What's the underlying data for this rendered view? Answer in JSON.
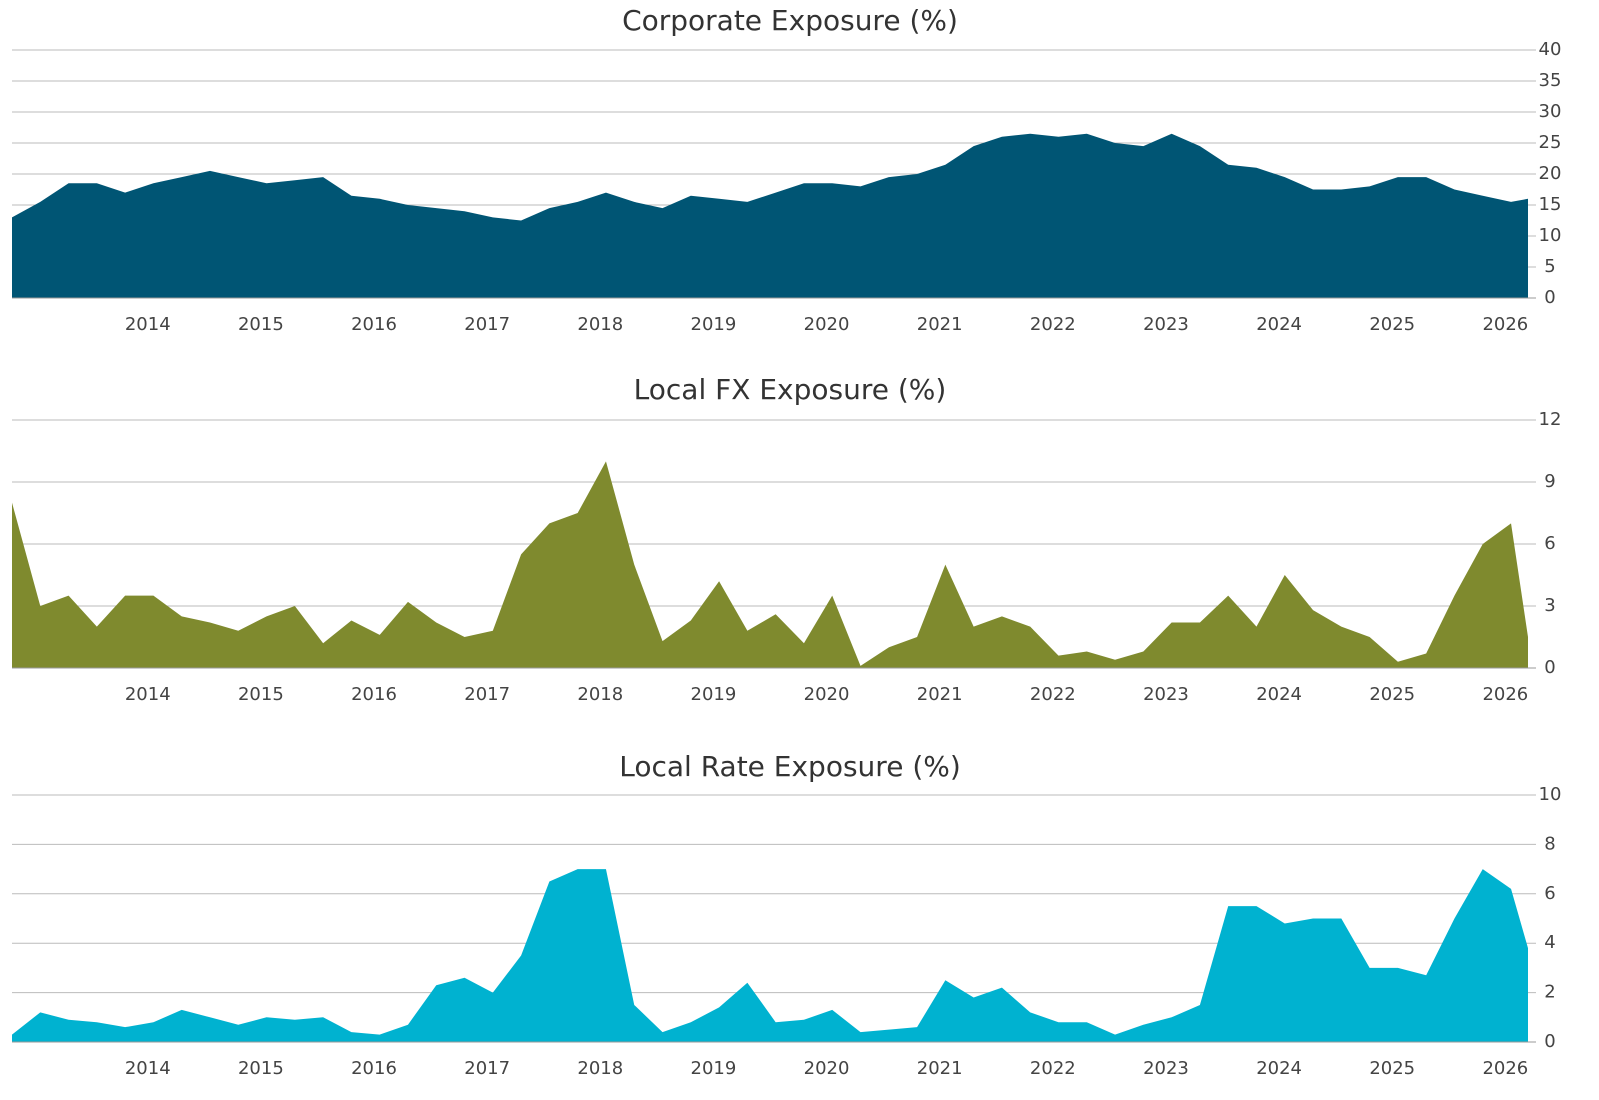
{
  "chart_data": [
    {
      "type": "area",
      "title": "Corporate Exposure (%)",
      "color": "#005574",
      "x": [
        2012.8,
        2013.05,
        2013.3,
        2013.55,
        2013.8,
        2014.05,
        2014.3,
        2014.55,
        2014.8,
        2015.05,
        2015.3,
        2015.55,
        2015.8,
        2016.05,
        2016.3,
        2016.55,
        2016.8,
        2017.05,
        2017.3,
        2017.55,
        2017.8,
        2018.05,
        2018.3,
        2018.55,
        2018.8,
        2019.05,
        2019.3,
        2019.55,
        2019.8,
        2020.05,
        2020.3,
        2020.55,
        2020.8,
        2021.05,
        2021.3,
        2021.55,
        2021.8,
        2022.05,
        2022.3,
        2022.55,
        2022.8,
        2023.05,
        2023.3,
        2023.55,
        2023.8,
        2024.05,
        2024.3,
        2024.55,
        2024.8,
        2025.05,
        2025.3,
        2025.55,
        2025.8,
        2026.05,
        2026.2
      ],
      "values": [
        13,
        15.5,
        18.5,
        18.5,
        17,
        18.5,
        19.5,
        20.5,
        19.5,
        18.5,
        19,
        19.5,
        16.5,
        16,
        15,
        14.5,
        14,
        13,
        12.5,
        14.5,
        15.5,
        17,
        15.5,
        14.5,
        16.5,
        16,
        15.5,
        17,
        18.5,
        18.5,
        18,
        19.5,
        20,
        21.5,
        24.5,
        26,
        26.5,
        26,
        26.5,
        25,
        24.5,
        26.5,
        24.5,
        21.5,
        21,
        19.5,
        17.5,
        17.5,
        18,
        19.5,
        19.5,
        17.5,
        16.5,
        15.5,
        16
      ],
      "xlim": [
        2012.8,
        2026.2
      ],
      "xticks": [
        2014,
        2015,
        2016,
        2017,
        2018,
        2019,
        2020,
        2021,
        2022,
        2023,
        2024,
        2025,
        2026
      ],
      "ylim": [
        0,
        40
      ],
      "yticks": [
        0,
        5,
        10,
        15,
        20,
        25,
        30,
        35,
        40
      ],
      "grid": true
    },
    {
      "type": "area",
      "title": "Local FX Exposure (%)",
      "color": "#7f8a2e",
      "x": [
        2012.8,
        2013.05,
        2013.3,
        2013.55,
        2013.8,
        2014.05,
        2014.3,
        2014.55,
        2014.8,
        2015.05,
        2015.3,
        2015.55,
        2015.8,
        2016.05,
        2016.3,
        2016.55,
        2016.8,
        2017.05,
        2017.3,
        2017.55,
        2017.8,
        2018.05,
        2018.3,
        2018.55,
        2018.8,
        2019.05,
        2019.3,
        2019.55,
        2019.8,
        2020.05,
        2020.3,
        2020.55,
        2020.8,
        2021.05,
        2021.3,
        2021.55,
        2021.8,
        2022.05,
        2022.3,
        2022.55,
        2022.8,
        2023.05,
        2023.3,
        2023.55,
        2023.8,
        2024.05,
        2024.3,
        2024.55,
        2024.8,
        2025.05,
        2025.3,
        2025.55,
        2025.8,
        2026.05,
        2026.2
      ],
      "values": [
        8,
        3,
        3.5,
        2,
        3.5,
        3.5,
        2.5,
        2.2,
        1.8,
        2.5,
        3,
        1.2,
        2.3,
        1.6,
        3.2,
        2.2,
        1.5,
        1.8,
        5.5,
        7,
        7.5,
        10,
        5,
        1.3,
        2.3,
        4.2,
        1.8,
        2.6,
        1.2,
        3.5,
        0.1,
        1,
        1.5,
        5,
        2,
        2.5,
        2,
        0.6,
        0.8,
        0.4,
        0.8,
        2.2,
        2.2,
        3.5,
        2,
        4.5,
        2.8,
        2,
        1.5,
        0.3,
        0.7,
        3.5,
        6,
        7,
        1.5
      ],
      "xlim": [
        2012.8,
        2026.2
      ],
      "xticks": [
        2014,
        2015,
        2016,
        2017,
        2018,
        2019,
        2020,
        2021,
        2022,
        2023,
        2024,
        2025,
        2026
      ],
      "ylim": [
        0,
        12
      ],
      "yticks": [
        0,
        3,
        6,
        9,
        12
      ],
      "grid": true
    },
    {
      "type": "area",
      "title": "Local Rate Exposure (%)",
      "color": "#00b2d0",
      "x": [
        2012.8,
        2013.05,
        2013.3,
        2013.55,
        2013.8,
        2014.05,
        2014.3,
        2014.55,
        2014.8,
        2015.05,
        2015.3,
        2015.55,
        2015.8,
        2016.05,
        2016.3,
        2016.55,
        2016.8,
        2017.05,
        2017.3,
        2017.55,
        2017.8,
        2018.05,
        2018.3,
        2018.55,
        2018.8,
        2019.05,
        2019.3,
        2019.55,
        2019.8,
        2020.05,
        2020.3,
        2020.55,
        2020.8,
        2021.05,
        2021.3,
        2021.55,
        2021.8,
        2022.05,
        2022.3,
        2022.55,
        2022.8,
        2023.05,
        2023.3,
        2023.55,
        2023.8,
        2024.05,
        2024.3,
        2024.55,
        2024.8,
        2025.05,
        2025.3,
        2025.55,
        2025.8,
        2026.05,
        2026.2
      ],
      "values": [
        0.3,
        1.2,
        0.9,
        0.8,
        0.6,
        0.8,
        1.3,
        1,
        0.7,
        1,
        0.9,
        1,
        0.4,
        0.3,
        0.7,
        2.3,
        2.6,
        2,
        3.5,
        6.5,
        7,
        7,
        1.5,
        0.4,
        0.8,
        1.4,
        2.4,
        0.8,
        0.9,
        1.3,
        0.4,
        0.5,
        0.6,
        2.5,
        1.8,
        2.2,
        1.2,
        0.8,
        0.8,
        0.3,
        0.7,
        1,
        1.5,
        5.5,
        5.5,
        4.8,
        5,
        5,
        3,
        3,
        2.7,
        5,
        7,
        6.2,
        3.8
      ],
      "xlim": [
        2012.8,
        2026.2
      ],
      "xticks": [
        2014,
        2015,
        2016,
        2017,
        2018,
        2019,
        2020,
        2021,
        2022,
        2023,
        2024,
        2025,
        2026
      ],
      "ylim": [
        0,
        10
      ],
      "yticks": [
        0,
        2,
        4,
        6,
        8,
        10
      ],
      "grid": true
    }
  ]
}
